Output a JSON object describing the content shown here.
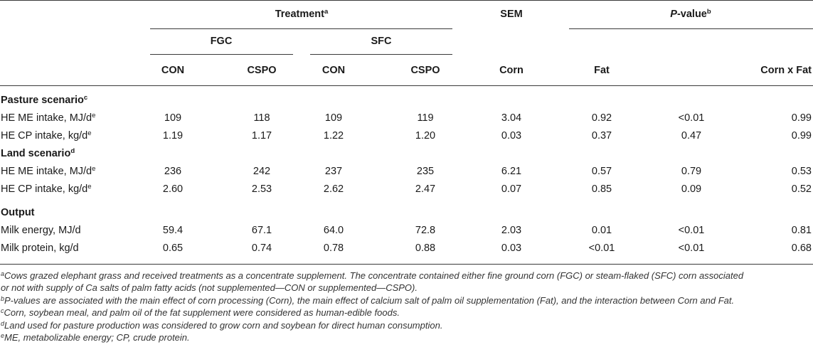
{
  "header": {
    "treatment": "Treatment",
    "treatment_sup": "a",
    "sem": "SEM",
    "pvalue_p": "P",
    "pvalue_rest": "-value",
    "pvalue_sup": "b",
    "fgc": "FGC",
    "sfc": "SFC",
    "cols": [
      "CON",
      "CSPO",
      "CON",
      "CSPO",
      "Corn",
      "Fat",
      "Corn x Fat"
    ]
  },
  "sections": [
    {
      "title": "Pasture scenario",
      "sup": "c",
      "rows": [
        {
          "label": "HE ME intake, MJ/d",
          "sup": "e",
          "values": [
            "109",
            "118",
            "109",
            "119",
            "3.04",
            "0.92",
            "<0.01",
            "0.99"
          ]
        },
        {
          "label": "HE CP intake, kg/d",
          "sup": "e",
          "values": [
            "1.19",
            "1.17",
            "1.22",
            "1.20",
            "0.03",
            "0.37",
            "0.47",
            "0.99"
          ]
        }
      ]
    },
    {
      "title": "Land scenario",
      "sup": "d",
      "rows": [
        {
          "label": "HE ME intake, MJ/d",
          "sup": "e",
          "values": [
            "236",
            "242",
            "237",
            "235",
            "6.21",
            "0.57",
            "0.79",
            "0.53"
          ]
        },
        {
          "label": "HE CP intake, kg/d",
          "sup": "e",
          "values": [
            "2.60",
            "2.53",
            "2.62",
            "2.47",
            "0.07",
            "0.85",
            "0.09",
            "0.52"
          ]
        }
      ]
    },
    {
      "title": "Output",
      "sup": "",
      "rows": [
        {
          "label": "Milk energy, MJ/d",
          "sup": "",
          "values": [
            "59.4",
            "67.1",
            "64.0",
            "72.8",
            "2.03",
            "0.01",
            "<0.01",
            "0.81"
          ]
        },
        {
          "label": "Milk protein, kg/d",
          "sup": "",
          "values": [
            "0.65",
            "0.74",
            "0.78",
            "0.88",
            "0.03",
            "<0.01",
            "<0.01",
            "0.68"
          ]
        }
      ]
    }
  ],
  "footnotes": [
    {
      "sup": "a",
      "lines": [
        "Cows grazed elephant grass and received treatments as a concentrate supplement. The concentrate contained either fine ground corn (FGC) or steam-flaked (SFC) corn associated",
        "or not with supply of Ca salts of palm fatty acids (not supplemented—CON or supplemented—CSPO)."
      ]
    },
    {
      "sup": "b",
      "lines": [
        "P-values are associated with the main effect of corn processing (Corn), the main effect of calcium salt of palm oil supplementation (Fat), and the interaction between Corn and Fat."
      ]
    },
    {
      "sup": "c",
      "lines": [
        "Corn, soybean meal, and palm oil of the fat supplement were considered as human-edible foods."
      ]
    },
    {
      "sup": "d",
      "lines": [
        "Land used for pasture production was considered to grow corn and soybean for direct human consumption."
      ]
    },
    {
      "sup": "e",
      "lines": [
        "ME, metabolizable energy; CP, crude protein."
      ]
    }
  ]
}
